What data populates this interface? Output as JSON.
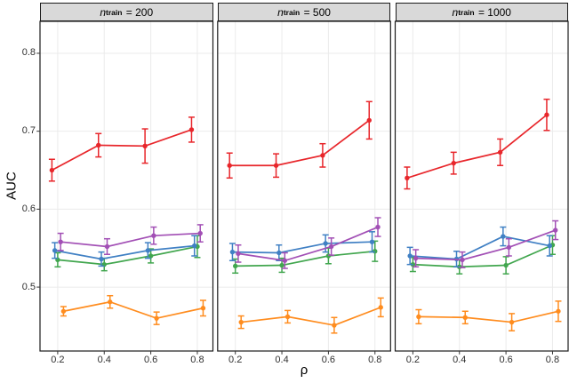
{
  "chart_data": {
    "type": "line",
    "xlabel": "ρ",
    "ylabel": "AUC",
    "x": [
      0.2,
      0.4,
      0.6,
      0.8
    ],
    "xtick_labels": [
      "0.2",
      "0.4",
      "0.6",
      "0.8"
    ],
    "yticks": [
      0.5,
      0.6,
      0.7,
      0.8
    ],
    "ytick_labels": [
      "0.5",
      "0.6",
      "0.7",
      "0.8"
    ],
    "xlim": [
      0.124,
      0.867
    ],
    "ylim": [
      0.418,
      0.841
    ],
    "grid": "major",
    "grid_color": "#EBEBEB",
    "legend_position": "none",
    "error_bars": true,
    "facet_variable": "n_train",
    "panels": [
      {
        "label": {
          "var": "n",
          "sub": "train",
          "eq": " = 200"
        },
        "series": [
          {
            "name": "red",
            "color": "#E8262B",
            "values": [
              0.65,
              0.682,
              0.681,
              0.702
            ],
            "errors": [
              0.014,
              0.015,
              0.022,
              0.016
            ]
          },
          {
            "name": "blue",
            "color": "#4080C4",
            "values": [
              0.547,
              0.536,
              0.547,
              0.553
            ],
            "errors": [
              0.01,
              0.009,
              0.01,
              0.013
            ]
          },
          {
            "name": "green",
            "color": "#41A64E",
            "values": [
              0.535,
              0.529,
              0.54,
              0.552
            ],
            "errors": [
              0.009,
              0.008,
              0.009,
              0.014
            ]
          },
          {
            "name": "purple",
            "color": "#A24FB5",
            "values": [
              0.558,
              0.552,
              0.566,
              0.569
            ],
            "errors": [
              0.011,
              0.01,
              0.011,
              0.011
            ]
          },
          {
            "name": "orange",
            "color": "#FF8C1E",
            "values": [
              0.469,
              0.481,
              0.46,
              0.473
            ],
            "errors": [
              0.006,
              0.008,
              0.008,
              0.01
            ]
          }
        ]
      },
      {
        "label": {
          "var": "n",
          "sub": "train",
          "eq": " = 500"
        },
        "series": [
          {
            "name": "red",
            "color": "#E8262B",
            "values": [
              0.656,
              0.656,
              0.669,
              0.714
            ],
            "errors": [
              0.016,
              0.015,
              0.015,
              0.024
            ]
          },
          {
            "name": "blue",
            "color": "#4080C4",
            "values": [
              0.545,
              0.544,
              0.556,
              0.558
            ],
            "errors": [
              0.011,
              0.01,
              0.011,
              0.013
            ]
          },
          {
            "name": "green",
            "color": "#41A64E",
            "values": [
              0.527,
              0.528,
              0.54,
              0.546
            ],
            "errors": [
              0.009,
              0.009,
              0.01,
              0.013
            ]
          },
          {
            "name": "purple",
            "color": "#A24FB5",
            "values": [
              0.543,
              0.534,
              0.552,
              0.577
            ],
            "errors": [
              0.011,
              0.01,
              0.011,
              0.012
            ]
          },
          {
            "name": "orange",
            "color": "#FF8C1E",
            "values": [
              0.455,
              0.462,
              0.451,
              0.474
            ],
            "errors": [
              0.008,
              0.008,
              0.01,
              0.012
            ]
          }
        ]
      },
      {
        "label": {
          "var": "n",
          "sub": "train",
          "eq": " = 1000"
        },
        "series": [
          {
            "name": "red",
            "color": "#E8262B",
            "values": [
              0.64,
              0.659,
              0.673,
              0.721
            ],
            "errors": [
              0.014,
              0.014,
              0.017,
              0.02
            ]
          },
          {
            "name": "blue",
            "color": "#4080C4",
            "values": [
              0.54,
              0.536,
              0.565,
              0.553
            ],
            "errors": [
              0.011,
              0.01,
              0.012,
              0.013
            ]
          },
          {
            "name": "green",
            "color": "#41A64E",
            "values": [
              0.529,
              0.526,
              0.528,
              0.554
            ],
            "errors": [
              0.009,
              0.009,
              0.011,
              0.012
            ]
          },
          {
            "name": "purple",
            "color": "#A24FB5",
            "values": [
              0.537,
              0.535,
              0.551,
              0.573
            ],
            "errors": [
              0.011,
              0.01,
              0.011,
              0.012
            ]
          },
          {
            "name": "orange",
            "color": "#FF8C1E",
            "values": [
              0.462,
              0.461,
              0.455,
              0.469
            ],
            "errors": [
              0.009,
              0.008,
              0.011,
              0.013
            ]
          }
        ]
      }
    ]
  }
}
